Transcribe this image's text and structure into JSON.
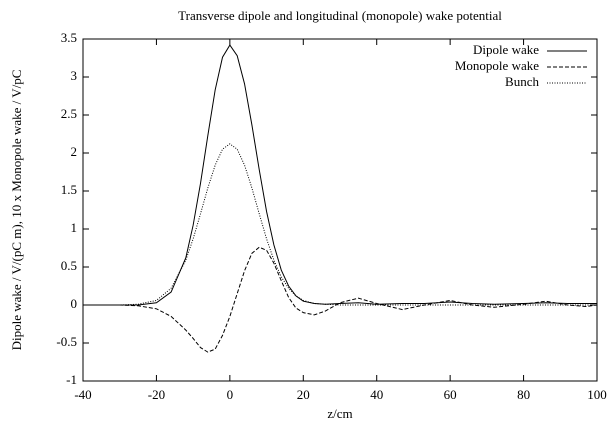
{
  "chart_data": {
    "type": "line",
    "title": "Transverse dipole and longitudinal (monopole) wake potential",
    "x_label": "z/cm",
    "y_label": "Dipole wake / V/(pC m), 10 x Monopole wake / V/pC",
    "x": [
      -40,
      -35,
      -30,
      -25,
      -20,
      -16,
      -12,
      -10,
      -8,
      -6,
      -4,
      -2,
      0,
      2,
      4,
      6,
      8,
      10,
      12,
      14,
      16,
      18,
      20,
      23,
      26,
      30,
      35,
      40,
      47,
      53,
      60,
      66,
      72,
      80,
      86,
      92,
      97,
      100
    ],
    "series": [
      {
        "name": "Dipole wake",
        "color": "#000000",
        "dash": "solid",
        "values": [
          0,
          0,
          0,
          0,
          0.03,
          0.17,
          0.62,
          1.05,
          1.6,
          2.23,
          2.83,
          3.26,
          3.42,
          3.28,
          2.91,
          2.37,
          1.78,
          1.23,
          0.79,
          0.46,
          0.25,
          0.12,
          0.05,
          0.02,
          0.01,
          0.02,
          0.03,
          0.01,
          0.02,
          0.02,
          0.04,
          0.02,
          0.01,
          0.02,
          0.03,
          0.02,
          0.02,
          0.02
        ]
      },
      {
        "name": "Monopole wake",
        "color": "#000000",
        "dash": "dashed",
        "values": [
          0,
          0,
          0,
          -0.01,
          -0.05,
          -0.15,
          -0.33,
          -0.44,
          -0.56,
          -0.62,
          -0.58,
          -0.4,
          -0.15,
          0.15,
          0.45,
          0.68,
          0.76,
          0.72,
          0.55,
          0.32,
          0.1,
          -0.04,
          -0.1,
          -0.13,
          -0.08,
          0.03,
          0.09,
          0.02,
          -0.06,
          0,
          0.06,
          0,
          -0.03,
          0.01,
          0.05,
          0,
          -0.02,
          0
        ]
      },
      {
        "name": "Bunch",
        "color": "#000000",
        "dash": "dotted",
        "values": [
          0,
          0,
          0,
          0.01,
          0.06,
          0.22,
          0.59,
          0.87,
          1.2,
          1.54,
          1.84,
          2.05,
          2.12,
          2.05,
          1.84,
          1.54,
          1.2,
          0.87,
          0.59,
          0.37,
          0.22,
          0.12,
          0.06,
          0.02,
          0.01,
          0,
          0,
          0,
          0,
          0,
          0,
          0,
          0,
          0,
          0,
          0,
          0,
          0
        ]
      }
    ],
    "xlim": [
      -40,
      100
    ],
    "xticks": [
      -40,
      -20,
      0,
      20,
      40,
      60,
      80,
      100
    ],
    "ylim": [
      -1,
      3.5
    ],
    "yticks": [
      -1,
      -0.5,
      0,
      0.5,
      1,
      1.5,
      2,
      2.5,
      3,
      3.5
    ],
    "grid": false,
    "legend": "top-right"
  }
}
